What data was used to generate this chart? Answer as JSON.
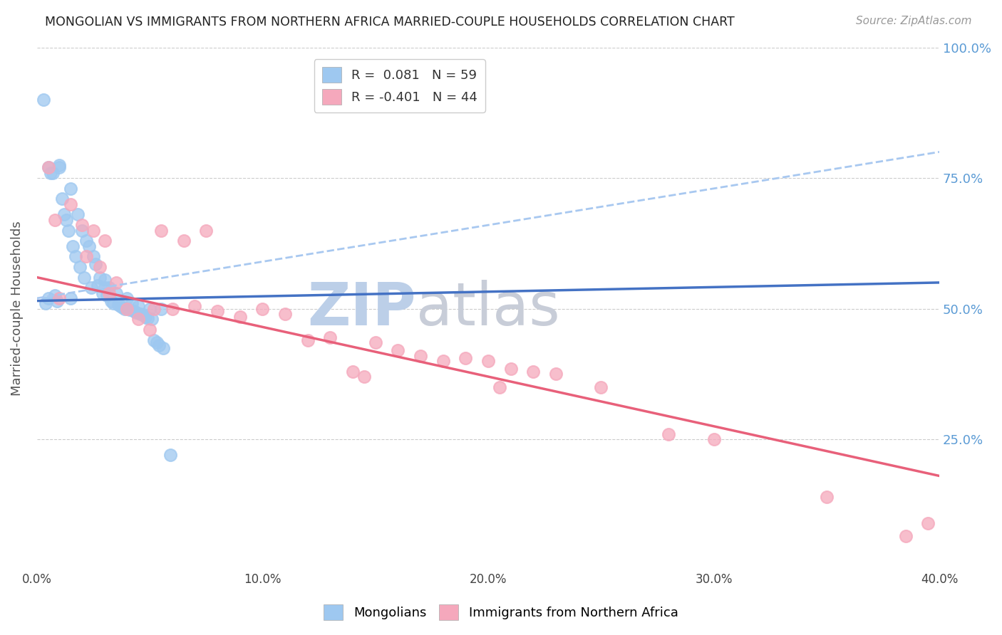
{
  "title": "MONGOLIAN VS IMMIGRANTS FROM NORTHERN AFRICA MARRIED-COUPLE HOUSEHOLDS CORRELATION CHART",
  "source": "Source: ZipAtlas.com",
  "ylabel": "Married-couple Households",
  "xlabel_ticks": [
    "0.0%",
    "10.0%",
    "20.0%",
    "30.0%",
    "40.0%"
  ],
  "xlabel_tick_vals": [
    0.0,
    10.0,
    20.0,
    30.0,
    40.0
  ],
  "ylabel_ticks": [
    "100.0%",
    "75.0%",
    "50.0%",
    "25.0%"
  ],
  "ylabel_tick_vals": [
    100.0,
    75.0,
    50.0,
    25.0
  ],
  "xlim": [
    0.0,
    40.0
  ],
  "ylim": [
    0.0,
    100.0
  ],
  "mongolian_R": 0.081,
  "mongolian_N": 59,
  "africa_R": -0.401,
  "africa_N": 44,
  "mongolian_color": "#9EC8F0",
  "africa_color": "#F5A8BC",
  "mongolian_line_color": "#4472C4",
  "africa_line_color": "#E8607A",
  "mongolian_dashed_color": "#A8C8F0",
  "watermark_zip_color": "#C8D8F0",
  "watermark_atlas_color": "#C0C8D8",
  "background_color": "#FFFFFF",
  "mongolian_line_x0": 0.0,
  "mongolian_line_y0": 51.5,
  "mongolian_line_x1": 40.0,
  "mongolian_line_y1": 55.0,
  "africa_line_x0": 0.0,
  "africa_line_y0": 56.0,
  "africa_line_x1": 40.0,
  "africa_line_y1": 18.0,
  "dashed_line_x0": 0.0,
  "dashed_line_y0": 52.0,
  "dashed_line_x1": 40.0,
  "dashed_line_y1": 80.0,
  "mongolian_x": [
    0.3,
    0.4,
    0.5,
    0.5,
    0.6,
    0.7,
    0.8,
    0.9,
    1.0,
    1.0,
    1.1,
    1.2,
    1.3,
    1.4,
    1.5,
    1.5,
    1.6,
    1.7,
    1.8,
    1.9,
    2.0,
    2.1,
    2.2,
    2.3,
    2.4,
    2.5,
    2.6,
    2.7,
    2.8,
    2.9,
    3.0,
    3.0,
    3.1,
    3.2,
    3.3,
    3.4,
    3.5,
    3.6,
    3.7,
    3.8,
    3.9,
    4.0,
    4.1,
    4.2,
    4.3,
    4.4,
    4.5,
    4.6,
    4.7,
    4.8,
    4.9,
    5.0,
    5.1,
    5.2,
    5.3,
    5.4,
    5.5,
    5.6,
    5.9
  ],
  "mongolian_y": [
    90.0,
    51.0,
    77.0,
    52.0,
    76.0,
    76.0,
    52.5,
    51.5,
    77.5,
    77.0,
    71.0,
    68.0,
    67.0,
    65.0,
    73.0,
    52.0,
    62.0,
    60.0,
    68.0,
    58.0,
    65.0,
    56.0,
    63.0,
    62.0,
    54.0,
    60.0,
    58.5,
    54.5,
    56.0,
    53.0,
    55.5,
    54.0,
    52.5,
    54.0,
    51.5,
    51.0,
    53.0,
    50.8,
    50.5,
    50.2,
    50.0,
    52.0,
    49.8,
    51.0,
    49.5,
    49.2,
    50.5,
    49.0,
    48.8,
    48.5,
    48.2,
    50.0,
    48.0,
    44.0,
    43.5,
    43.0,
    50.0,
    42.5,
    22.0
  ],
  "africa_x": [
    0.5,
    0.8,
    1.0,
    1.5,
    2.0,
    2.2,
    2.5,
    2.8,
    3.0,
    3.2,
    3.5,
    4.0,
    4.5,
    5.0,
    5.2,
    5.5,
    6.0,
    6.5,
    7.0,
    7.5,
    8.0,
    9.0,
    10.0,
    11.0,
    12.0,
    13.0,
    14.0,
    14.5,
    15.0,
    16.0,
    17.0,
    18.0,
    19.0,
    20.0,
    20.5,
    21.0,
    22.0,
    23.0,
    25.0,
    28.0,
    30.0,
    35.0,
    38.5,
    39.5
  ],
  "africa_y": [
    77.0,
    67.0,
    52.0,
    70.0,
    66.0,
    60.0,
    65.0,
    58.0,
    63.0,
    53.0,
    55.0,
    50.0,
    48.0,
    46.0,
    50.0,
    65.0,
    50.0,
    63.0,
    50.5,
    65.0,
    49.5,
    48.5,
    50.0,
    49.0,
    44.0,
    44.5,
    38.0,
    37.0,
    43.5,
    42.0,
    41.0,
    40.0,
    40.5,
    40.0,
    35.0,
    38.5,
    38.0,
    37.5,
    35.0,
    26.0,
    25.0,
    14.0,
    6.5,
    9.0
  ]
}
